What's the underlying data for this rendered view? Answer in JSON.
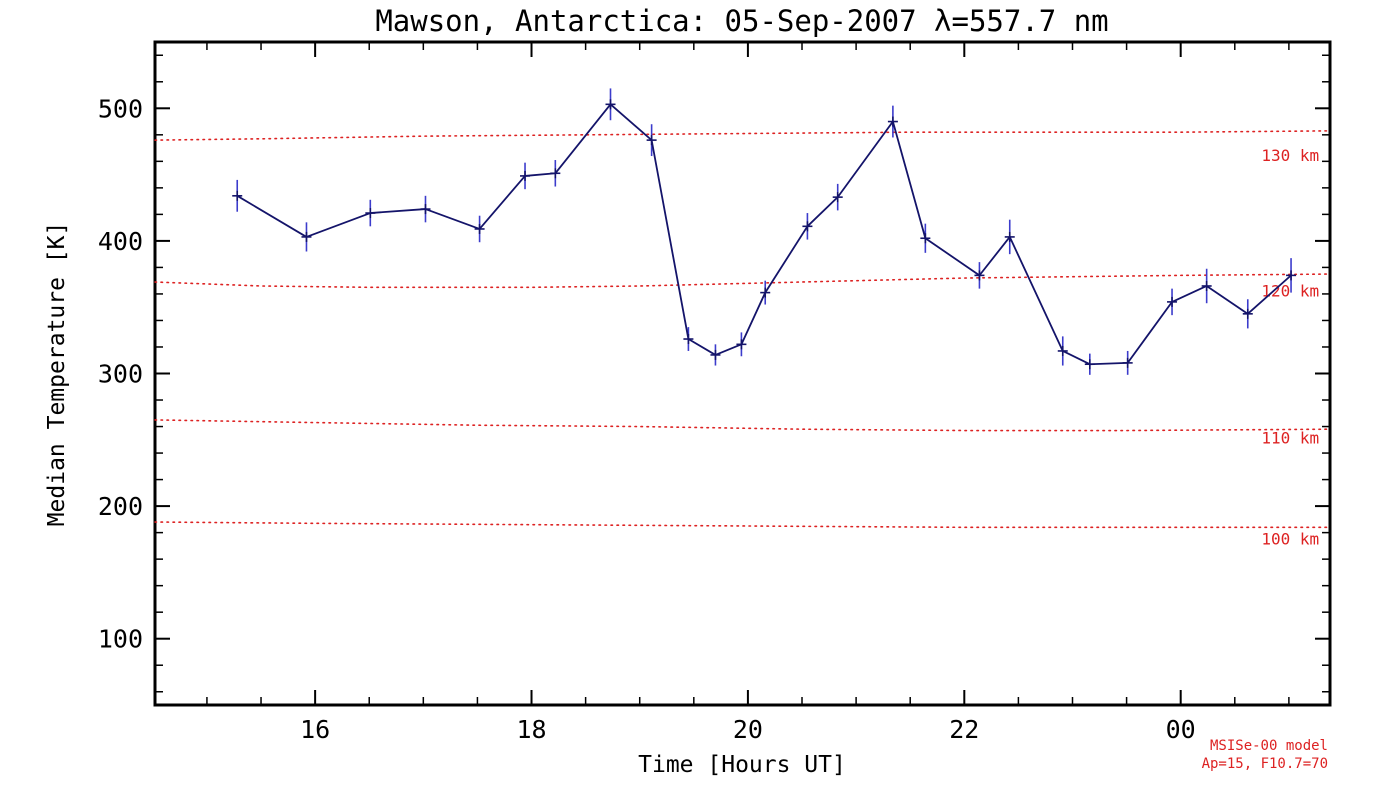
{
  "page": {
    "background": "#ffffff"
  },
  "chart_data": {
    "type": "line",
    "title": "Mawson, Antarctica: 05-Sep-2007 λ=557.7 nm",
    "xlabel": "Time [Hours UT]",
    "ylabel": "Median Temperature [K]",
    "xlim": [
      14.52,
      25.38
    ],
    "ylim": [
      50,
      550
    ],
    "grid": false,
    "x_ticks": [
      {
        "value": 16,
        "label": "16"
      },
      {
        "value": 18,
        "label": "18"
      },
      {
        "value": 20,
        "label": "20"
      },
      {
        "value": 22,
        "label": "22"
      },
      {
        "value": 24,
        "label": "00"
      }
    ],
    "y_ticks": [
      {
        "value": 100,
        "label": "100"
      },
      {
        "value": 200,
        "label": "200"
      },
      {
        "value": 300,
        "label": "300"
      },
      {
        "value": 400,
        "label": "400"
      },
      {
        "value": 500,
        "label": "500"
      }
    ],
    "x_minor_step": 0.5,
    "y_minor_step": 20,
    "colors": {
      "frame": "#000000",
      "series_line": "#14146a",
      "error_bar": "#3c3ccc",
      "model_red": "#dd2222"
    },
    "series": [
      {
        "name": "median-temperature",
        "marker": "plus",
        "color": "#14146a",
        "error_color": "#3c3ccc",
        "x": [
          15.28,
          15.92,
          16.51,
          17.02,
          17.52,
          17.94,
          18.22,
          18.73,
          19.11,
          19.45,
          19.7,
          19.94,
          20.16,
          20.55,
          20.83,
          21.34,
          21.64,
          22.14,
          22.42,
          22.91,
          23.16,
          23.51,
          23.92,
          24.24,
          24.62,
          25.02
        ],
        "y": [
          434,
          403,
          421,
          424,
          409,
          449,
          451,
          503,
          476,
          326,
          314,
          322,
          361,
          411,
          433,
          490,
          402,
          374,
          403,
          317,
          307,
          308,
          354,
          366,
          345,
          374
        ],
        "yerr": [
          12,
          11,
          10,
          10,
          10,
          10,
          10,
          12,
          12,
          9,
          8,
          9,
          9,
          10,
          10,
          12,
          11,
          10,
          13,
          11,
          8,
          9,
          10,
          13,
          11,
          13
        ]
      }
    ],
    "reference_lines": [
      {
        "name": "130km",
        "label": "130 km",
        "color": "#dd2222",
        "style": "dotted",
        "label_pos": [
          25.28,
          464
        ],
        "points": [
          [
            14.52,
            476
          ],
          [
            15.5,
            477
          ],
          [
            17.0,
            479
          ],
          [
            18.5,
            480
          ],
          [
            20.0,
            481
          ],
          [
            21.5,
            482
          ],
          [
            23.0,
            482
          ],
          [
            24.0,
            482
          ],
          [
            25.38,
            483
          ]
        ]
      },
      {
        "name": "120km",
        "label": "120 km",
        "color": "#dd2222",
        "style": "dotted",
        "label_pos": [
          25.28,
          362
        ],
        "points": [
          [
            14.52,
            369
          ],
          [
            15.5,
            366
          ],
          [
            16.5,
            365
          ],
          [
            18.0,
            365
          ],
          [
            19.0,
            366
          ],
          [
            20.0,
            368
          ],
          [
            21.0,
            370
          ],
          [
            22.0,
            372
          ],
          [
            23.0,
            373
          ],
          [
            24.0,
            374
          ],
          [
            25.38,
            375
          ]
        ]
      },
      {
        "name": "110km",
        "label": "110 km",
        "color": "#dd2222",
        "style": "dotted",
        "label_pos": [
          25.28,
          251
        ],
        "points": [
          [
            14.52,
            265
          ],
          [
            16.0,
            263
          ],
          [
            17.5,
            261
          ],
          [
            19.0,
            260
          ],
          [
            20.5,
            258
          ],
          [
            22.0,
            257
          ],
          [
            23.5,
            257
          ],
          [
            25.38,
            258
          ]
        ]
      },
      {
        "name": "100km",
        "label": "100 km",
        "color": "#dd2222",
        "style": "dotted",
        "label_pos": [
          25.28,
          175
        ],
        "points": [
          [
            14.52,
            188
          ],
          [
            16.0,
            187
          ],
          [
            18.0,
            186
          ],
          [
            20.0,
            185
          ],
          [
            22.0,
            184
          ],
          [
            24.0,
            184
          ],
          [
            25.38,
            184
          ]
        ]
      }
    ],
    "annotations": [
      {
        "text": "MSISe-00 model",
        "color": "#dd2222"
      },
      {
        "text": "Ap=15, F10.7=70",
        "color": "#dd2222"
      }
    ]
  }
}
